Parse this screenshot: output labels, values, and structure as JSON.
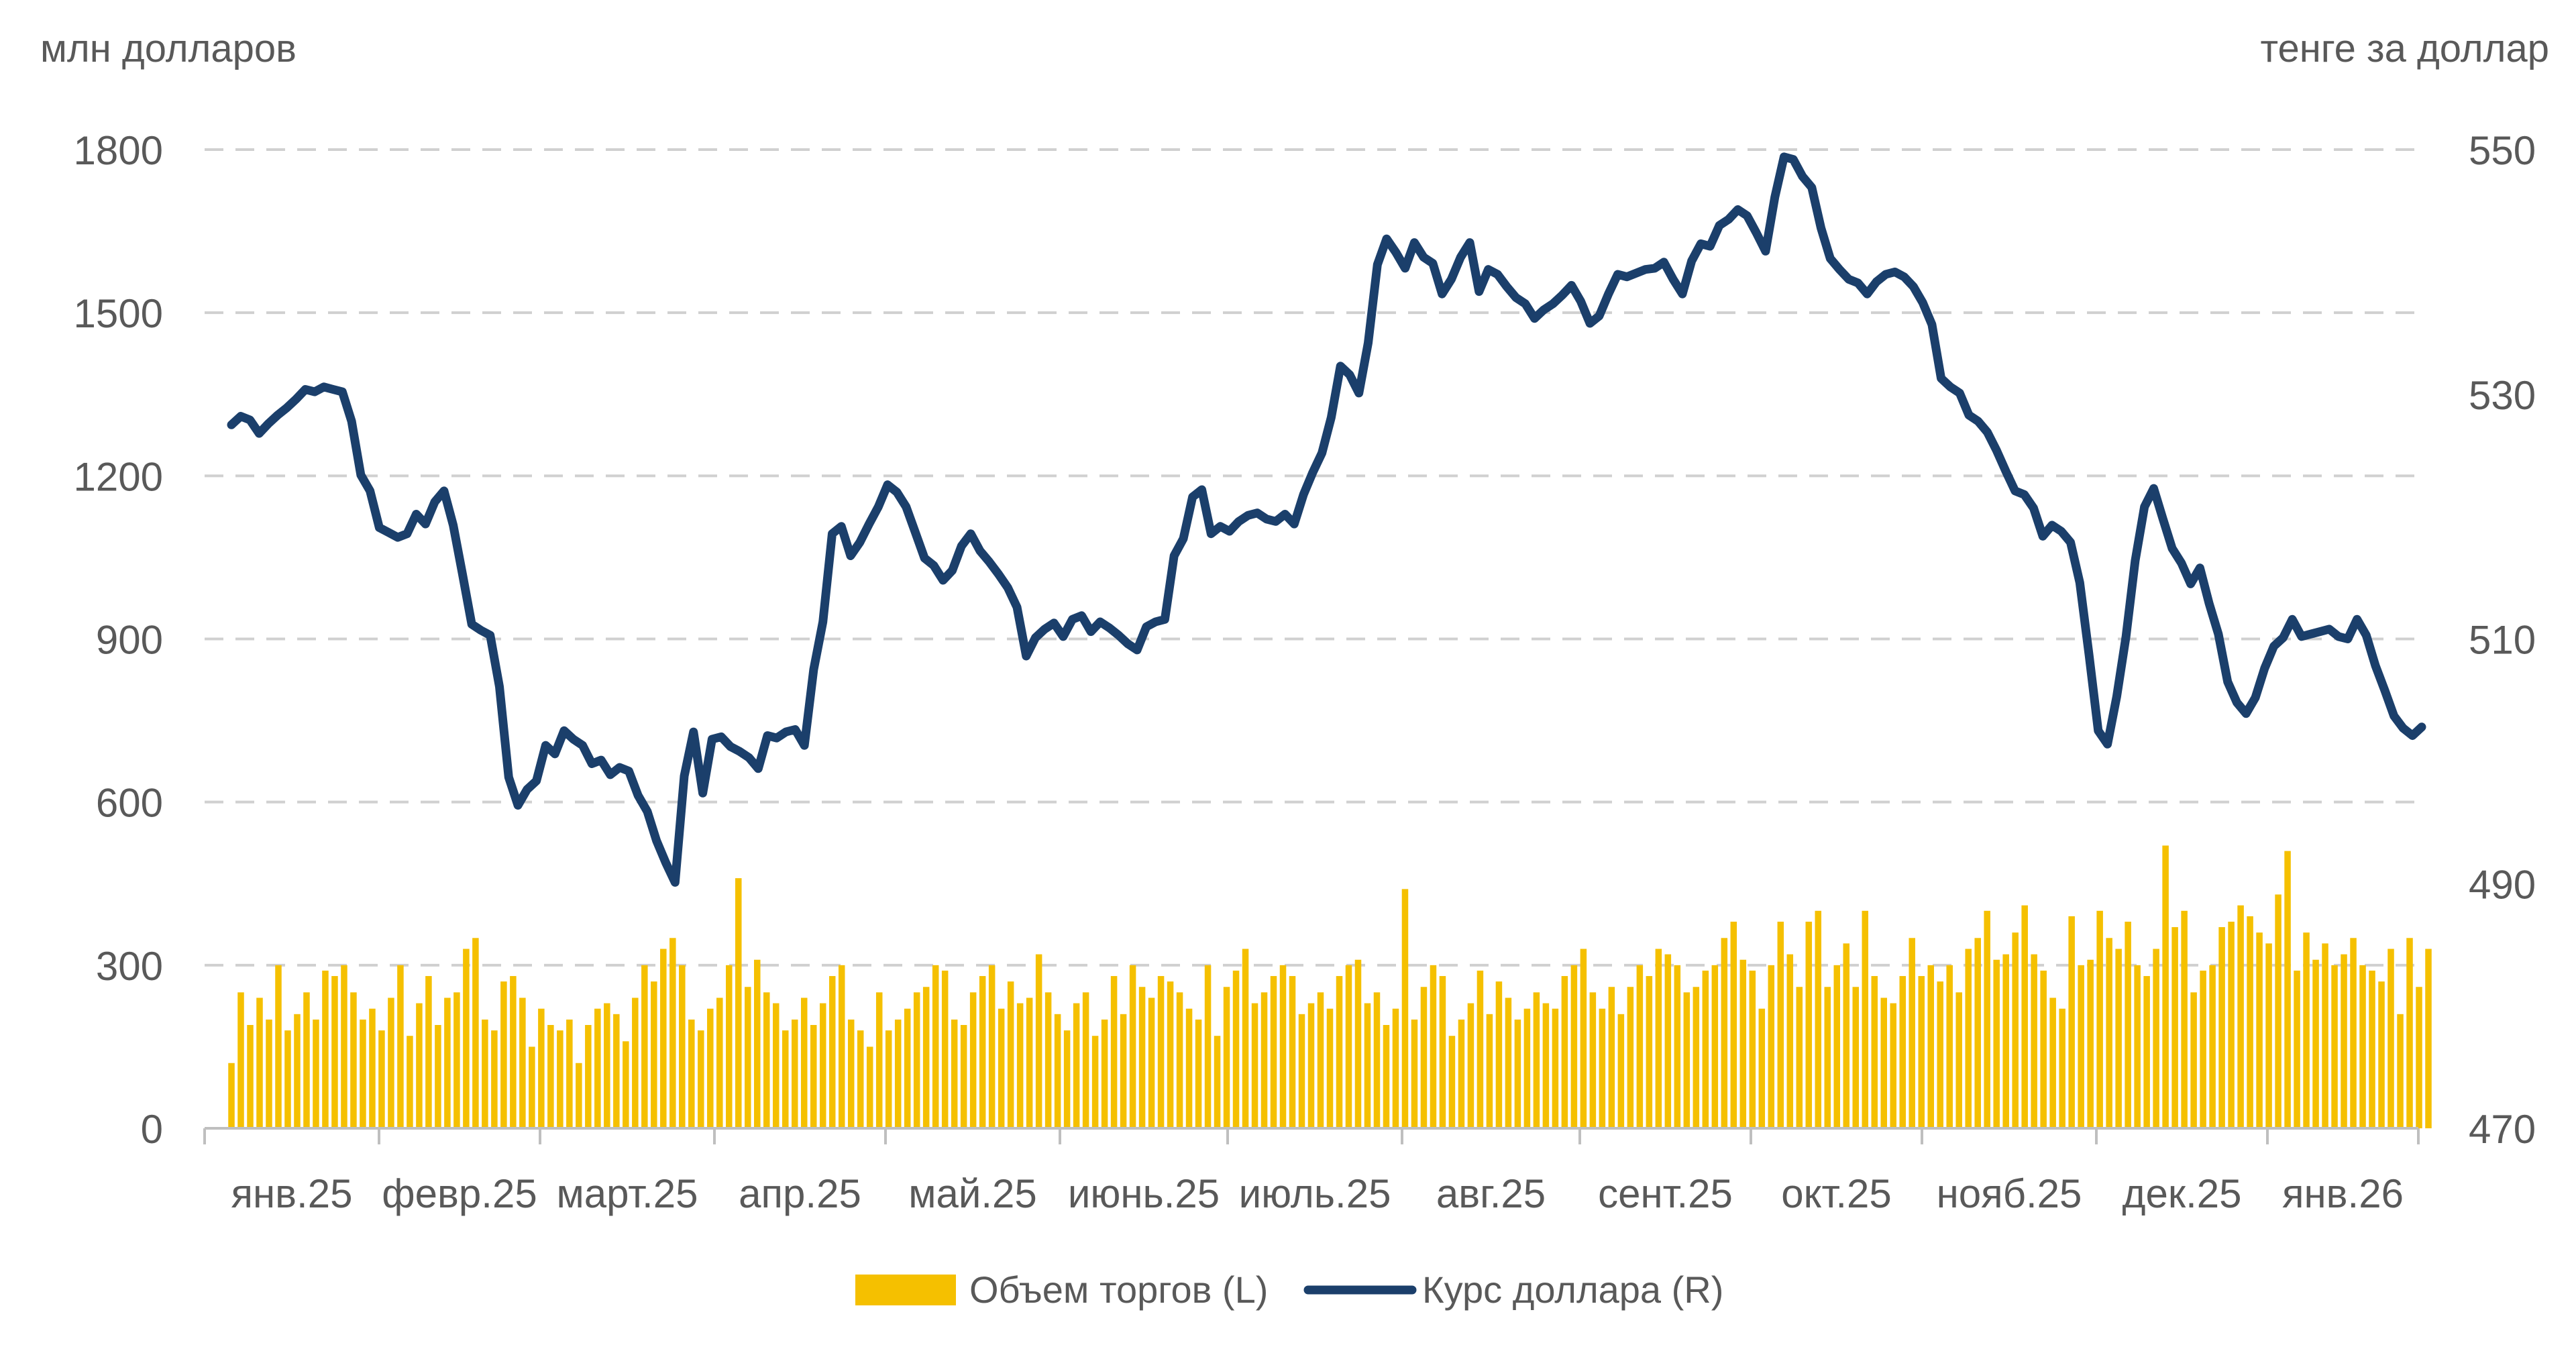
{
  "chart_data": {
    "type": "bar+line",
    "title": "",
    "left_axis_title": "млн долларов",
    "right_axis_title": "тенге за доллар",
    "y_left": {
      "min": 0,
      "max": 1800,
      "ticks": [
        "0",
        "300",
        "600",
        "900",
        "1200",
        "1500",
        "1800"
      ]
    },
    "y_right": {
      "min": 470,
      "max": 550,
      "ticks": [
        "470",
        "490",
        "510",
        "530",
        "550"
      ]
    },
    "x_ticks": [
      "янв.25",
      "февр.25",
      "март.25",
      "апр.25",
      "май.25",
      "июнь.25",
      "июль.25",
      "авг.25",
      "сент.25",
      "окт.25",
      "нояб.25",
      "дек.25",
      "янв.26"
    ],
    "grid": true,
    "legend_position": "bottom",
    "series": [
      {
        "name": "Объем торгов (L)",
        "type": "bar",
        "axis": "left",
        "color": "#F5C000",
        "values": [
          120,
          250,
          190,
          240,
          200,
          300,
          180,
          210,
          250,
          200,
          290,
          280,
          300,
          250,
          200,
          220,
          180,
          240,
          300,
          170,
          230,
          280,
          190,
          240,
          250,
          330,
          350,
          200,
          180,
          270,
          280,
          240,
          150,
          220,
          190,
          180,
          200,
          120,
          190,
          220,
          230,
          210,
          160,
          240,
          300,
          270,
          330,
          350,
          300,
          200,
          180,
          220,
          240,
          300,
          460,
          260,
          310,
          250,
          230,
          180,
          200,
          240,
          190,
          230,
          280,
          300,
          200,
          180,
          150,
          250,
          180,
          200,
          220,
          250,
          260,
          300,
          290,
          200,
          190,
          250,
          280,
          300,
          220,
          270,
          230,
          240,
          320,
          250,
          210,
          180,
          230,
          250,
          170,
          200,
          280,
          210,
          300,
          260,
          240,
          280,
          270,
          250,
          220,
          200,
          300,
          170,
          260,
          290,
          330,
          230,
          250,
          280,
          300,
          280,
          210,
          230,
          250,
          220,
          280,
          300,
          310,
          230,
          250,
          190,
          220,
          440,
          200,
          260,
          300,
          280,
          170,
          200,
          230,
          290,
          210,
          270,
          240,
          200,
          220,
          250,
          230,
          220,
          280,
          300,
          330,
          250,
          220,
          260,
          210,
          260,
          300,
          280,
          330,
          320,
          300,
          250,
          260,
          290,
          300,
          350,
          380,
          310,
          290,
          220,
          300,
          380,
          320,
          260,
          380,
          400,
          260,
          300,
          340,
          260,
          400,
          280,
          240,
          230,
          280,
          350,
          280,
          300,
          270,
          300,
          250,
          330,
          350,
          400,
          310,
          320,
          360,
          410,
          320,
          290,
          240,
          220,
          390,
          300,
          310,
          400,
          350,
          330,
          380,
          300,
          280,
          330,
          520,
          370,
          400,
          250,
          290,
          300,
          370,
          380,
          410,
          390,
          360,
          340,
          430,
          510,
          290,
          360,
          310,
          340,
          300,
          320,
          350,
          300,
          290,
          270,
          330,
          210,
          350,
          260,
          330
        ]
      },
      {
        "name": "Курс доллара (R)",
        "type": "line",
        "axis": "right",
        "color": "#1B3F6B",
        "values": [
          527.5,
          528.2,
          527.9,
          526.8,
          527.6,
          528.3,
          528.9,
          529.6,
          530.4,
          530.2,
          530.6,
          530.4,
          530.2,
          527.8,
          523.4,
          522.1,
          519.1,
          518.7,
          518.3,
          518.6,
          520.2,
          519.4,
          521.2,
          522.1,
          519.3,
          515.3,
          511.2,
          510.7,
          510.3,
          506.1,
          498.7,
          496.4,
          497.7,
          498.4,
          501.3,
          500.6,
          502.5,
          501.8,
          501.3,
          499.8,
          500.1,
          498.9,
          499.5,
          499.2,
          497.2,
          495.9,
          493.5,
          491.7,
          490.1,
          498.8,
          502.4,
          497.4,
          501.8,
          502.0,
          501.2,
          500.8,
          500.3,
          499.4,
          502.1,
          501.9,
          502.4,
          502.6,
          501.3,
          507.5,
          511.4,
          518.6,
          519.2,
          516.8,
          517.9,
          519.4,
          520.8,
          522.6,
          522.0,
          520.8,
          518.7,
          516.6,
          516.0,
          514.8,
          515.6,
          517.6,
          518.6,
          517.2,
          516.3,
          515.3,
          514.2,
          512.6,
          508.6,
          510.1,
          510.8,
          511.3,
          510.2,
          511.6,
          511.9,
          510.6,
          511.4,
          510.9,
          510.3,
          509.6,
          509.1,
          511.0,
          511.4,
          511.6,
          516.8,
          518.2,
          521.6,
          522.2,
          518.6,
          519.2,
          518.8,
          519.6,
          520.1,
          520.3,
          519.8,
          519.6,
          520.2,
          519.4,
          521.8,
          523.6,
          525.2,
          528.1,
          532.3,
          531.6,
          530.1,
          534.2,
          540.6,
          542.7,
          541.6,
          540.3,
          542.4,
          541.2,
          540.7,
          538.2,
          539.4,
          541.2,
          542.4,
          538.4,
          540.2,
          539.8,
          538.8,
          537.9,
          537.4,
          536.2,
          536.9,
          537.4,
          538.1,
          538.9,
          537.6,
          535.8,
          536.4,
          538.2,
          539.8,
          539.6,
          539.9,
          540.2,
          540.3,
          540.8,
          539.4,
          538.2,
          540.9,
          542.3,
          542.1,
          543.8,
          544.3,
          545.1,
          544.6,
          543.2,
          541.7,
          546.1,
          549.4,
          549.2,
          547.8,
          546.9,
          543.6,
          541.1,
          540.2,
          539.4,
          539.1,
          538.2,
          539.2,
          539.8,
          540.0,
          539.6,
          538.8,
          537.5,
          535.7,
          531.3,
          530.6,
          530.1,
          528.3,
          527.8,
          526.9,
          525.4,
          523.7,
          522.1,
          521.8,
          520.7,
          518.4,
          519.3,
          518.8,
          517.9,
          514.6,
          508.7,
          502.5,
          501.4,
          505.3,
          510.2,
          516.4,
          520.8,
          522.3,
          519.8,
          517.4,
          516.2,
          514.5,
          515.8,
          512.9,
          510.4,
          506.5,
          504.8,
          503.9,
          505.2,
          507.6,
          509.4,
          510.1,
          511.6,
          510.2,
          510.4,
          510.6,
          510.8,
          510.2,
          510.0,
          511.6,
          510.3,
          507.8,
          505.8,
          503.7,
          502.7,
          502.1,
          502.8
        ]
      }
    ]
  },
  "legend": {
    "bar_label": "Объем торгов (L)",
    "line_label": "Курс доллара (R)"
  }
}
